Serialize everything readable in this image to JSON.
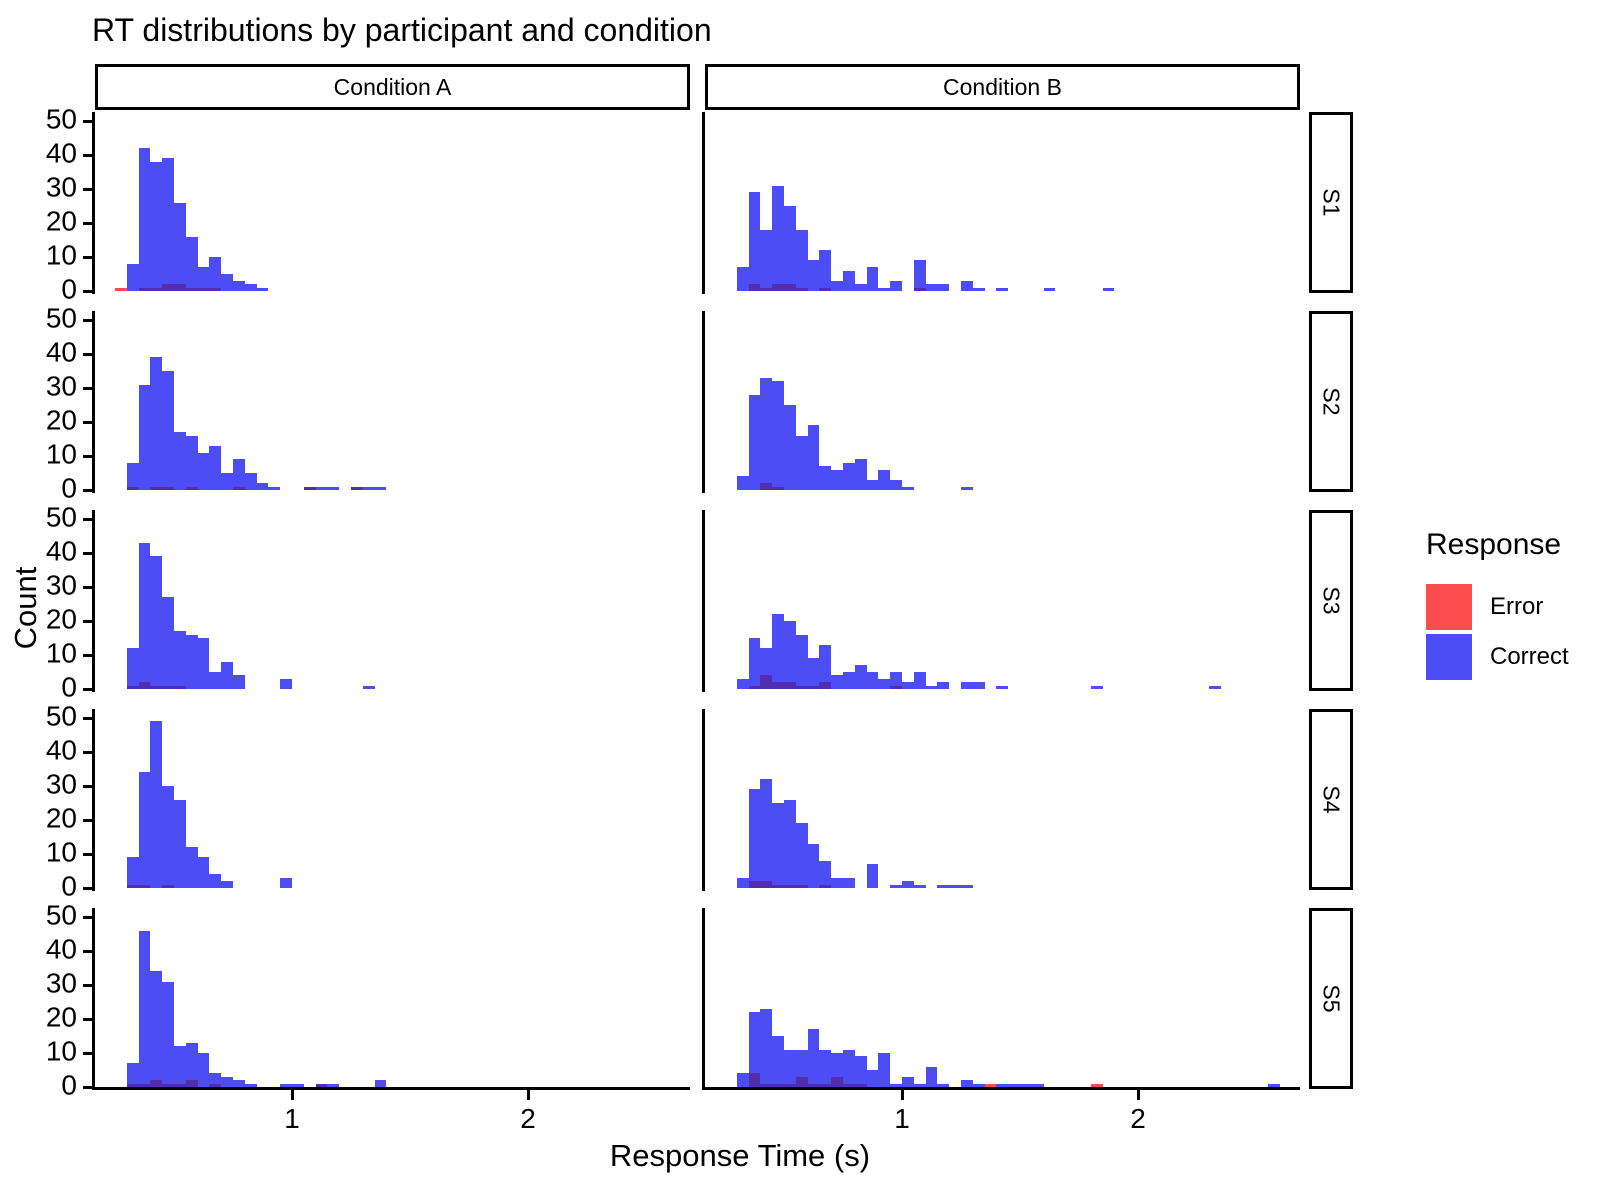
{
  "title": "RT distributions by participant and condition",
  "axes": {
    "x_title": "Response Time (s)",
    "y_title": "Count",
    "x_ticks": [
      "1",
      "2"
    ],
    "y_ticks": [
      "0",
      "10",
      "20",
      "30",
      "40",
      "50"
    ]
  },
  "legend": {
    "title": "Response",
    "items": [
      {
        "label": "Error",
        "color": "#FB4D4D"
      },
      {
        "label": "Correct",
        "color": "#4D4DF5"
      }
    ]
  },
  "facets": {
    "columns": [
      "Condition A",
      "Condition B"
    ],
    "rows": [
      "S1",
      "S2",
      "S3",
      "S4",
      "S5"
    ]
  },
  "colors": {
    "correct_fill": "#4D4DF5",
    "error_fill": "#FB4D4D",
    "overlap_fill": "#522DB0",
    "axis": "#000000"
  },
  "chart_data": {
    "type": "histogram",
    "title": "RT distributions by participant and condition",
    "xlabel": "Response Time (s)",
    "ylabel": "Count",
    "x_range": [
      0.165,
      2.685
    ],
    "y_range": [
      0,
      52
    ],
    "x_tick_values": [
      1,
      2
    ],
    "y_tick_values": [
      0,
      10,
      20,
      30,
      40,
      50
    ],
    "bin_width": 0.05,
    "legend_position": "right",
    "grid": false,
    "series_note": "bars = [bin_left_x_seconds, correct_count, error_count]; error overlaps correct from baseline",
    "panels": [
      {
        "condition": "Condition A",
        "participant": "S1",
        "bars": [
          [
            0.25,
            0,
            1
          ],
          [
            0.3,
            8,
            0
          ],
          [
            0.35,
            42,
            1
          ],
          [
            0.4,
            38,
            1
          ],
          [
            0.45,
            39,
            2
          ],
          [
            0.5,
            26,
            2
          ],
          [
            0.55,
            16,
            1
          ],
          [
            0.6,
            7,
            1
          ],
          [
            0.65,
            10,
            1
          ],
          [
            0.7,
            5,
            0
          ],
          [
            0.75,
            3,
            0
          ],
          [
            0.8,
            2,
            0
          ],
          [
            0.85,
            1,
            0
          ]
        ]
      },
      {
        "condition": "Condition B",
        "participant": "S1",
        "bars": [
          [
            0.3,
            7,
            0
          ],
          [
            0.35,
            29,
            2
          ],
          [
            0.4,
            18,
            1
          ],
          [
            0.45,
            31,
            2
          ],
          [
            0.5,
            25,
            2
          ],
          [
            0.55,
            18,
            1
          ],
          [
            0.6,
            9,
            0
          ],
          [
            0.65,
            12,
            1
          ],
          [
            0.7,
            3,
            0
          ],
          [
            0.75,
            6,
            0
          ],
          [
            0.8,
            2,
            0
          ],
          [
            0.85,
            7,
            0
          ],
          [
            0.9,
            1,
            0
          ],
          [
            0.95,
            3,
            0
          ],
          [
            1.05,
            9,
            1
          ],
          [
            1.1,
            2,
            0
          ],
          [
            1.15,
            2,
            0
          ],
          [
            1.25,
            3,
            0
          ],
          [
            1.3,
            1,
            0
          ],
          [
            1.4,
            1,
            0
          ],
          [
            1.6,
            1,
            0
          ],
          [
            1.85,
            1,
            0
          ]
        ]
      },
      {
        "condition": "Condition A",
        "participant": "S2",
        "bars": [
          [
            0.3,
            8,
            1
          ],
          [
            0.35,
            31,
            0
          ],
          [
            0.4,
            39,
            1
          ],
          [
            0.45,
            35,
            1
          ],
          [
            0.5,
            17,
            0
          ],
          [
            0.55,
            16,
            1
          ],
          [
            0.6,
            11,
            0
          ],
          [
            0.65,
            13,
            0
          ],
          [
            0.7,
            5,
            0
          ],
          [
            0.75,
            9,
            1
          ],
          [
            0.8,
            5,
            0
          ],
          [
            0.85,
            2,
            0
          ],
          [
            0.9,
            1,
            0
          ],
          [
            1.05,
            1,
            1
          ],
          [
            1.1,
            1,
            0
          ],
          [
            1.15,
            1,
            0
          ],
          [
            1.25,
            1,
            1
          ],
          [
            1.3,
            1,
            0
          ],
          [
            1.35,
            1,
            0
          ]
        ]
      },
      {
        "condition": "Condition B",
        "participant": "S2",
        "bars": [
          [
            0.3,
            4,
            0
          ],
          [
            0.35,
            28,
            0
          ],
          [
            0.4,
            33,
            2
          ],
          [
            0.45,
            32,
            1
          ],
          [
            0.5,
            25,
            0
          ],
          [
            0.55,
            16,
            0
          ],
          [
            0.6,
            19,
            0
          ],
          [
            0.65,
            7,
            0
          ],
          [
            0.7,
            6,
            0
          ],
          [
            0.75,
            8,
            0
          ],
          [
            0.8,
            9,
            0
          ],
          [
            0.85,
            3,
            0
          ],
          [
            0.9,
            6,
            0
          ],
          [
            0.95,
            3,
            0
          ],
          [
            1.0,
            1,
            0
          ],
          [
            1.25,
            1,
            0
          ]
        ]
      },
      {
        "condition": "Condition A",
        "participant": "S3",
        "bars": [
          [
            0.3,
            12,
            1
          ],
          [
            0.35,
            43,
            2
          ],
          [
            0.4,
            39,
            1
          ],
          [
            0.45,
            27,
            1
          ],
          [
            0.5,
            17,
            1
          ],
          [
            0.55,
            16,
            0
          ],
          [
            0.6,
            15,
            0
          ],
          [
            0.65,
            5,
            0
          ],
          [
            0.7,
            8,
            0
          ],
          [
            0.75,
            4,
            0
          ],
          [
            0.95,
            3,
            0
          ],
          [
            1.3,
            1,
            0
          ]
        ]
      },
      {
        "condition": "Condition B",
        "participant": "S3",
        "bars": [
          [
            0.3,
            3,
            0
          ],
          [
            0.35,
            15,
            1
          ],
          [
            0.4,
            12,
            4
          ],
          [
            0.45,
            22,
            2
          ],
          [
            0.5,
            20,
            2
          ],
          [
            0.55,
            16,
            1
          ],
          [
            0.6,
            9,
            1
          ],
          [
            0.65,
            13,
            2
          ],
          [
            0.7,
            4,
            0
          ],
          [
            0.75,
            5,
            0
          ],
          [
            0.8,
            7,
            0
          ],
          [
            0.85,
            5,
            0
          ],
          [
            0.9,
            3,
            0
          ],
          [
            0.95,
            5,
            1
          ],
          [
            1.0,
            2,
            0
          ],
          [
            1.05,
            5,
            0
          ],
          [
            1.1,
            1,
            0
          ],
          [
            1.15,
            2,
            0
          ],
          [
            1.25,
            2,
            0
          ],
          [
            1.3,
            2,
            0
          ],
          [
            1.4,
            1,
            0
          ],
          [
            1.8,
            1,
            0
          ],
          [
            2.3,
            1,
            0
          ]
        ]
      },
      {
        "condition": "Condition A",
        "participant": "S4",
        "bars": [
          [
            0.3,
            9,
            1
          ],
          [
            0.35,
            34,
            1
          ],
          [
            0.4,
            49,
            0
          ],
          [
            0.45,
            30,
            1
          ],
          [
            0.5,
            26,
            0
          ],
          [
            0.55,
            12,
            0
          ],
          [
            0.6,
            9,
            0
          ],
          [
            0.65,
            4,
            0
          ],
          [
            0.7,
            2,
            0
          ],
          [
            0.95,
            3,
            0
          ]
        ]
      },
      {
        "condition": "Condition B",
        "participant": "S4",
        "bars": [
          [
            0.3,
            3,
            0
          ],
          [
            0.35,
            29,
            2
          ],
          [
            0.4,
            32,
            2
          ],
          [
            0.45,
            25,
            1
          ],
          [
            0.5,
            26,
            1
          ],
          [
            0.55,
            19,
            1
          ],
          [
            0.6,
            13,
            0
          ],
          [
            0.65,
            8,
            1
          ],
          [
            0.7,
            3,
            0
          ],
          [
            0.75,
            3,
            0
          ],
          [
            0.85,
            7,
            0
          ],
          [
            0.95,
            1,
            0
          ],
          [
            1.0,
            2,
            0
          ],
          [
            1.05,
            1,
            0
          ],
          [
            1.15,
            1,
            0
          ],
          [
            1.2,
            1,
            0
          ],
          [
            1.25,
            1,
            0
          ]
        ]
      },
      {
        "condition": "Condition A",
        "participant": "S5",
        "bars": [
          [
            0.3,
            7,
            1
          ],
          [
            0.35,
            46,
            1
          ],
          [
            0.4,
            34,
            2
          ],
          [
            0.45,
            31,
            1
          ],
          [
            0.5,
            12,
            1
          ],
          [
            0.55,
            13,
            2
          ],
          [
            0.6,
            10,
            0
          ],
          [
            0.65,
            4,
            1
          ],
          [
            0.7,
            3,
            0
          ],
          [
            0.75,
            2,
            0
          ],
          [
            0.8,
            1,
            0
          ],
          [
            0.95,
            1,
            0
          ],
          [
            1.0,
            1,
            0
          ],
          [
            1.1,
            1,
            1
          ],
          [
            1.15,
            1,
            0
          ],
          [
            1.35,
            2,
            0
          ]
        ]
      },
      {
        "condition": "Condition B",
        "participant": "S5",
        "bars": [
          [
            0.3,
            4,
            0
          ],
          [
            0.35,
            22,
            4
          ],
          [
            0.4,
            23,
            1
          ],
          [
            0.45,
            15,
            1
          ],
          [
            0.5,
            11,
            1
          ],
          [
            0.55,
            11,
            3
          ],
          [
            0.6,
            17,
            1
          ],
          [
            0.65,
            11,
            1
          ],
          [
            0.7,
            10,
            3
          ],
          [
            0.75,
            11,
            1
          ],
          [
            0.8,
            9,
            1
          ],
          [
            0.85,
            5,
            0
          ],
          [
            0.9,
            10,
            0
          ],
          [
            0.95,
            1,
            0
          ],
          [
            1.0,
            3,
            0
          ],
          [
            1.05,
            1,
            0
          ],
          [
            1.1,
            6,
            0
          ],
          [
            1.15,
            1,
            0
          ],
          [
            1.25,
            2,
            0
          ],
          [
            1.3,
            1,
            0
          ],
          [
            1.35,
            0,
            1
          ],
          [
            1.4,
            1,
            0
          ],
          [
            1.45,
            1,
            0
          ],
          [
            1.5,
            1,
            0
          ],
          [
            1.55,
            1,
            0
          ],
          [
            1.8,
            0,
            1
          ],
          [
            2.55,
            1,
            0
          ]
        ]
      }
    ]
  }
}
